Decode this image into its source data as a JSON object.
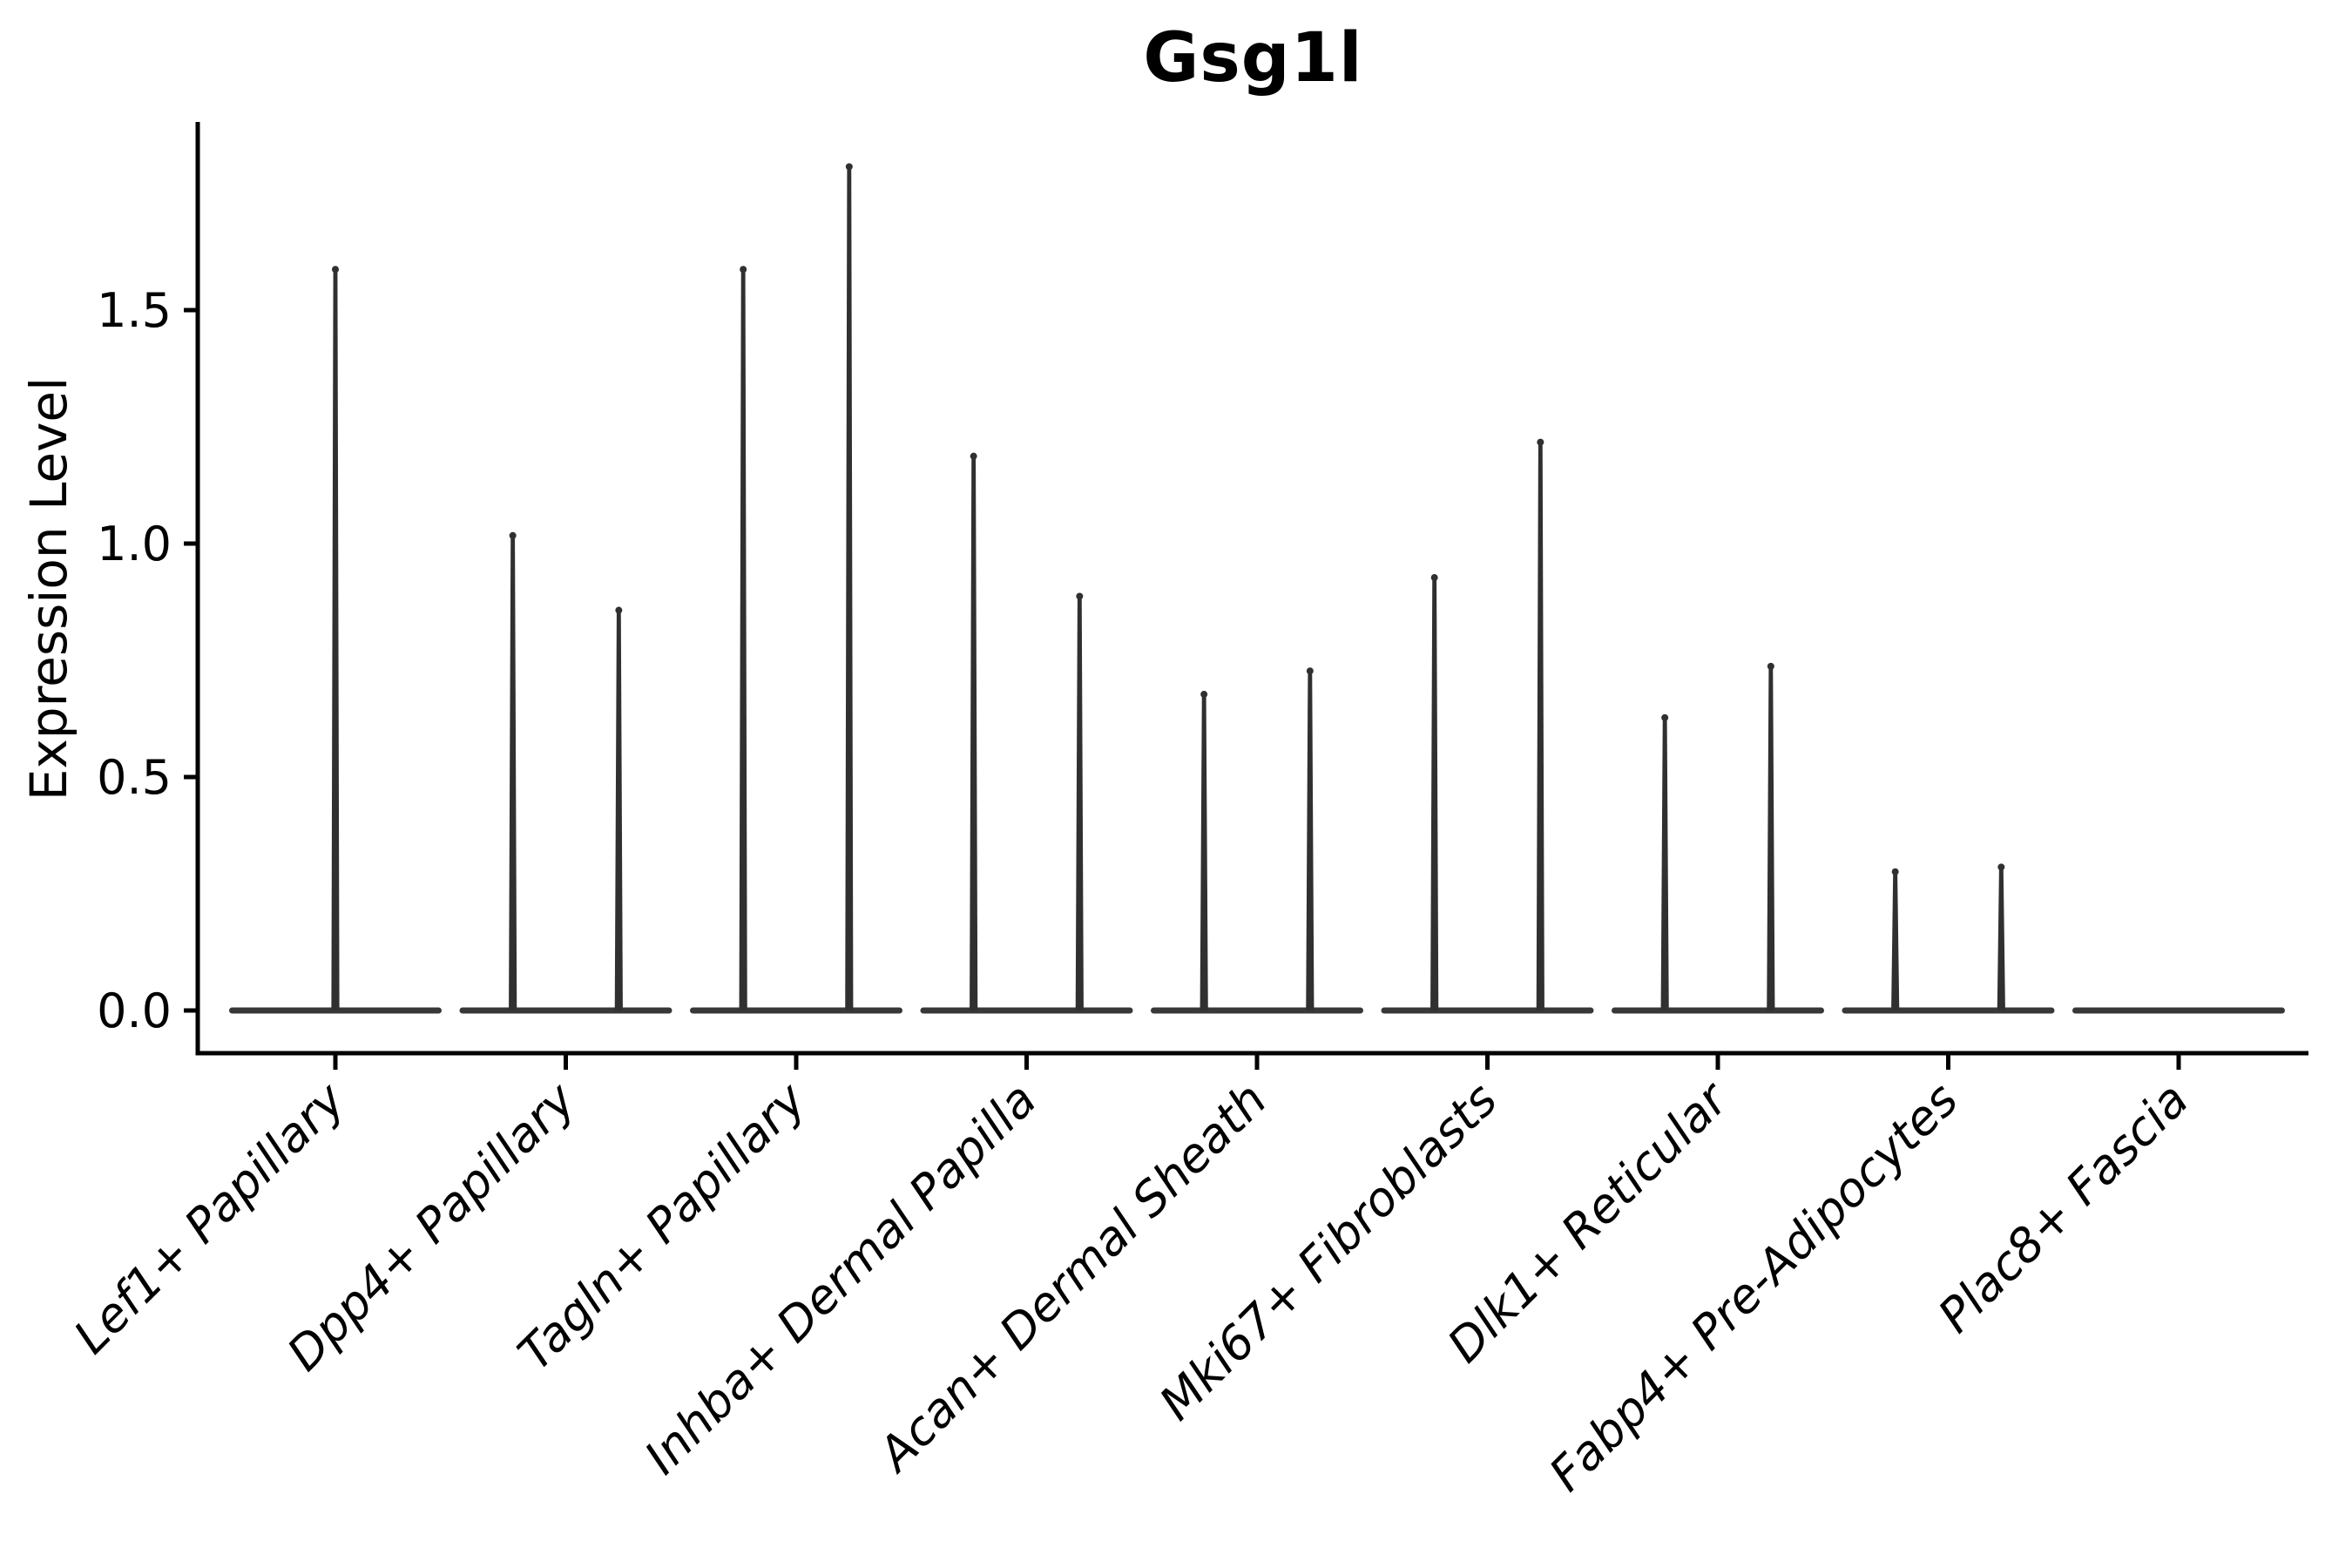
{
  "figure": {
    "title": "Gsg1l"
  },
  "chart_data": {
    "type": "violin",
    "title": "Gsg1l",
    "xlabel": "",
    "ylabel": "Expression Level",
    "ylim": [
      0,
      1.9
    ],
    "grid": false,
    "legend_position": "none",
    "axis_color": "#000000",
    "violin_color": "#383838",
    "spike_color": "#303030",
    "ytick_labels": [
      "0.0",
      "0.5",
      "1.0",
      "1.5"
    ],
    "ytick_values": [
      0.0,
      0.5,
      1.0,
      1.5
    ],
    "categories": [
      "Lef1+ Papillary",
      "Dpp4+ Papillary",
      "Tagln+ Papillary",
      "Inhba+ Dermal Papilla",
      "Acan+ Dermal Sheath",
      "Mki67+ Fibroblasts",
      "Dlk1+ Reticular",
      "Fabp4+ Pre-Adipocytes",
      "Plac8+ Fascia"
    ],
    "violins": [
      {
        "category": "Lef1+ Papillary",
        "spikes": [
          {
            "offset": 0.0,
            "max": 1.59
          }
        ]
      },
      {
        "category": "Dpp4+ Papillary",
        "spikes": [
          {
            "offset": -0.23,
            "max": 1.02
          },
          {
            "offset": 0.23,
            "max": 0.86
          }
        ]
      },
      {
        "category": "Tagln+ Papillary",
        "spikes": [
          {
            "offset": -0.23,
            "max": 1.59
          },
          {
            "offset": 0.23,
            "max": 1.81
          }
        ]
      },
      {
        "category": "Inhba+ Dermal Papilla",
        "spikes": [
          {
            "offset": -0.23,
            "max": 1.19
          },
          {
            "offset": 0.23,
            "max": 0.89
          }
        ]
      },
      {
        "category": "Acan+ Dermal Sheath",
        "spikes": [
          {
            "offset": -0.23,
            "max": 0.68
          },
          {
            "offset": 0.23,
            "max": 0.73
          }
        ]
      },
      {
        "category": "Mki67+ Fibroblasts",
        "spikes": [
          {
            "offset": -0.23,
            "max": 0.93
          },
          {
            "offset": 0.23,
            "max": 1.22
          }
        ]
      },
      {
        "category": "Dlk1+ Reticular",
        "spikes": [
          {
            "offset": -0.23,
            "max": 0.63
          },
          {
            "offset": 0.23,
            "max": 0.74
          }
        ]
      },
      {
        "category": "Fabp4+ Pre-Adipocytes",
        "spikes": [
          {
            "offset": -0.23,
            "max": 0.3
          },
          {
            "offset": 0.23,
            "max": 0.31
          }
        ]
      },
      {
        "category": "Plac8+ Fascia",
        "spikes": []
      }
    ]
  }
}
